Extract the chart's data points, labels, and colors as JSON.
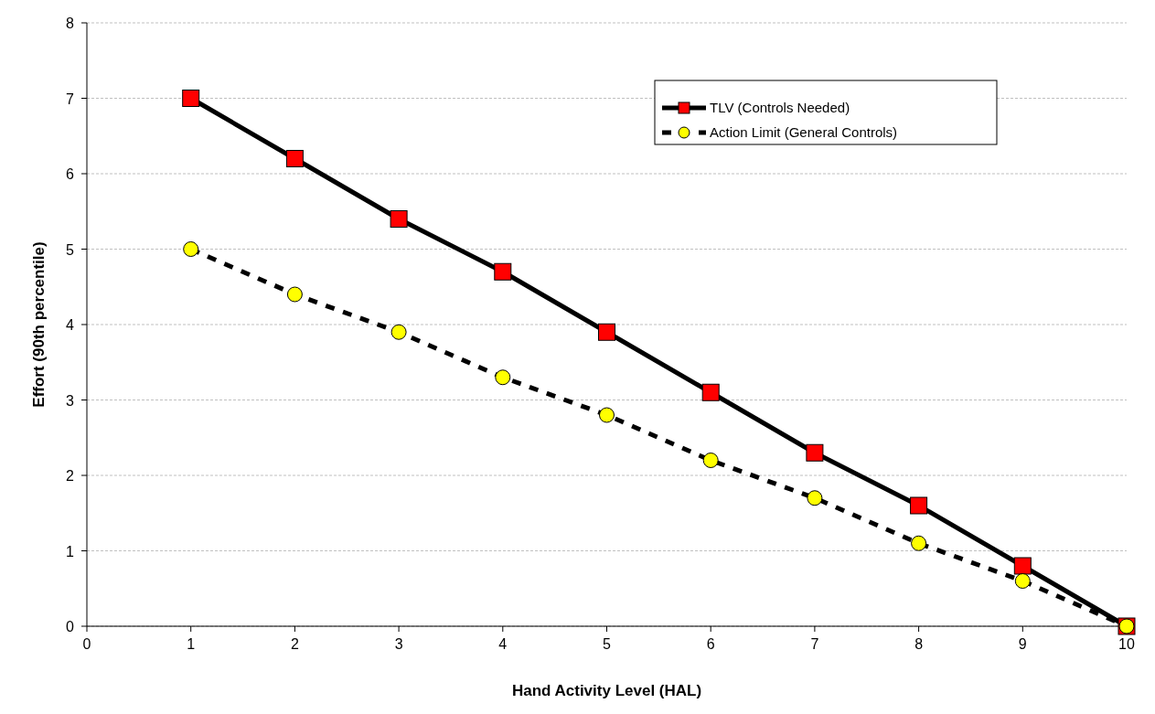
{
  "chart_data": {
    "type": "line",
    "xlabel": "Hand Activity Level (HAL)",
    "ylabel": "Effort (90th percentile)",
    "x": [
      1,
      2,
      3,
      4,
      5,
      6,
      7,
      8,
      9,
      10
    ],
    "xlim": [
      0,
      10
    ],
    "xticks": [
      0,
      1,
      2,
      3,
      4,
      5,
      6,
      7,
      8,
      9,
      10
    ],
    "ylim": [
      0,
      8
    ],
    "yticks": [
      0,
      1,
      2,
      3,
      4,
      5,
      6,
      7,
      8
    ],
    "grid": "y",
    "legend": "top right",
    "series": [
      {
        "name": "TLV (Controls Needed)",
        "color": "#ff0000",
        "marker": "square",
        "line_style": "solid",
        "values": [
          7,
          6.2,
          5.4,
          4.7,
          3.9,
          3.1,
          2.3,
          1.6,
          0.8,
          0
        ]
      },
      {
        "name": "Action Limit (General Controls)",
        "color": "#ffff00",
        "marker": "circle",
        "line_style": "dashed",
        "values": [
          5,
          4.4,
          3.9,
          3.3,
          2.8,
          2.2,
          1.7,
          1.1,
          0.6,
          0
        ]
      }
    ]
  }
}
